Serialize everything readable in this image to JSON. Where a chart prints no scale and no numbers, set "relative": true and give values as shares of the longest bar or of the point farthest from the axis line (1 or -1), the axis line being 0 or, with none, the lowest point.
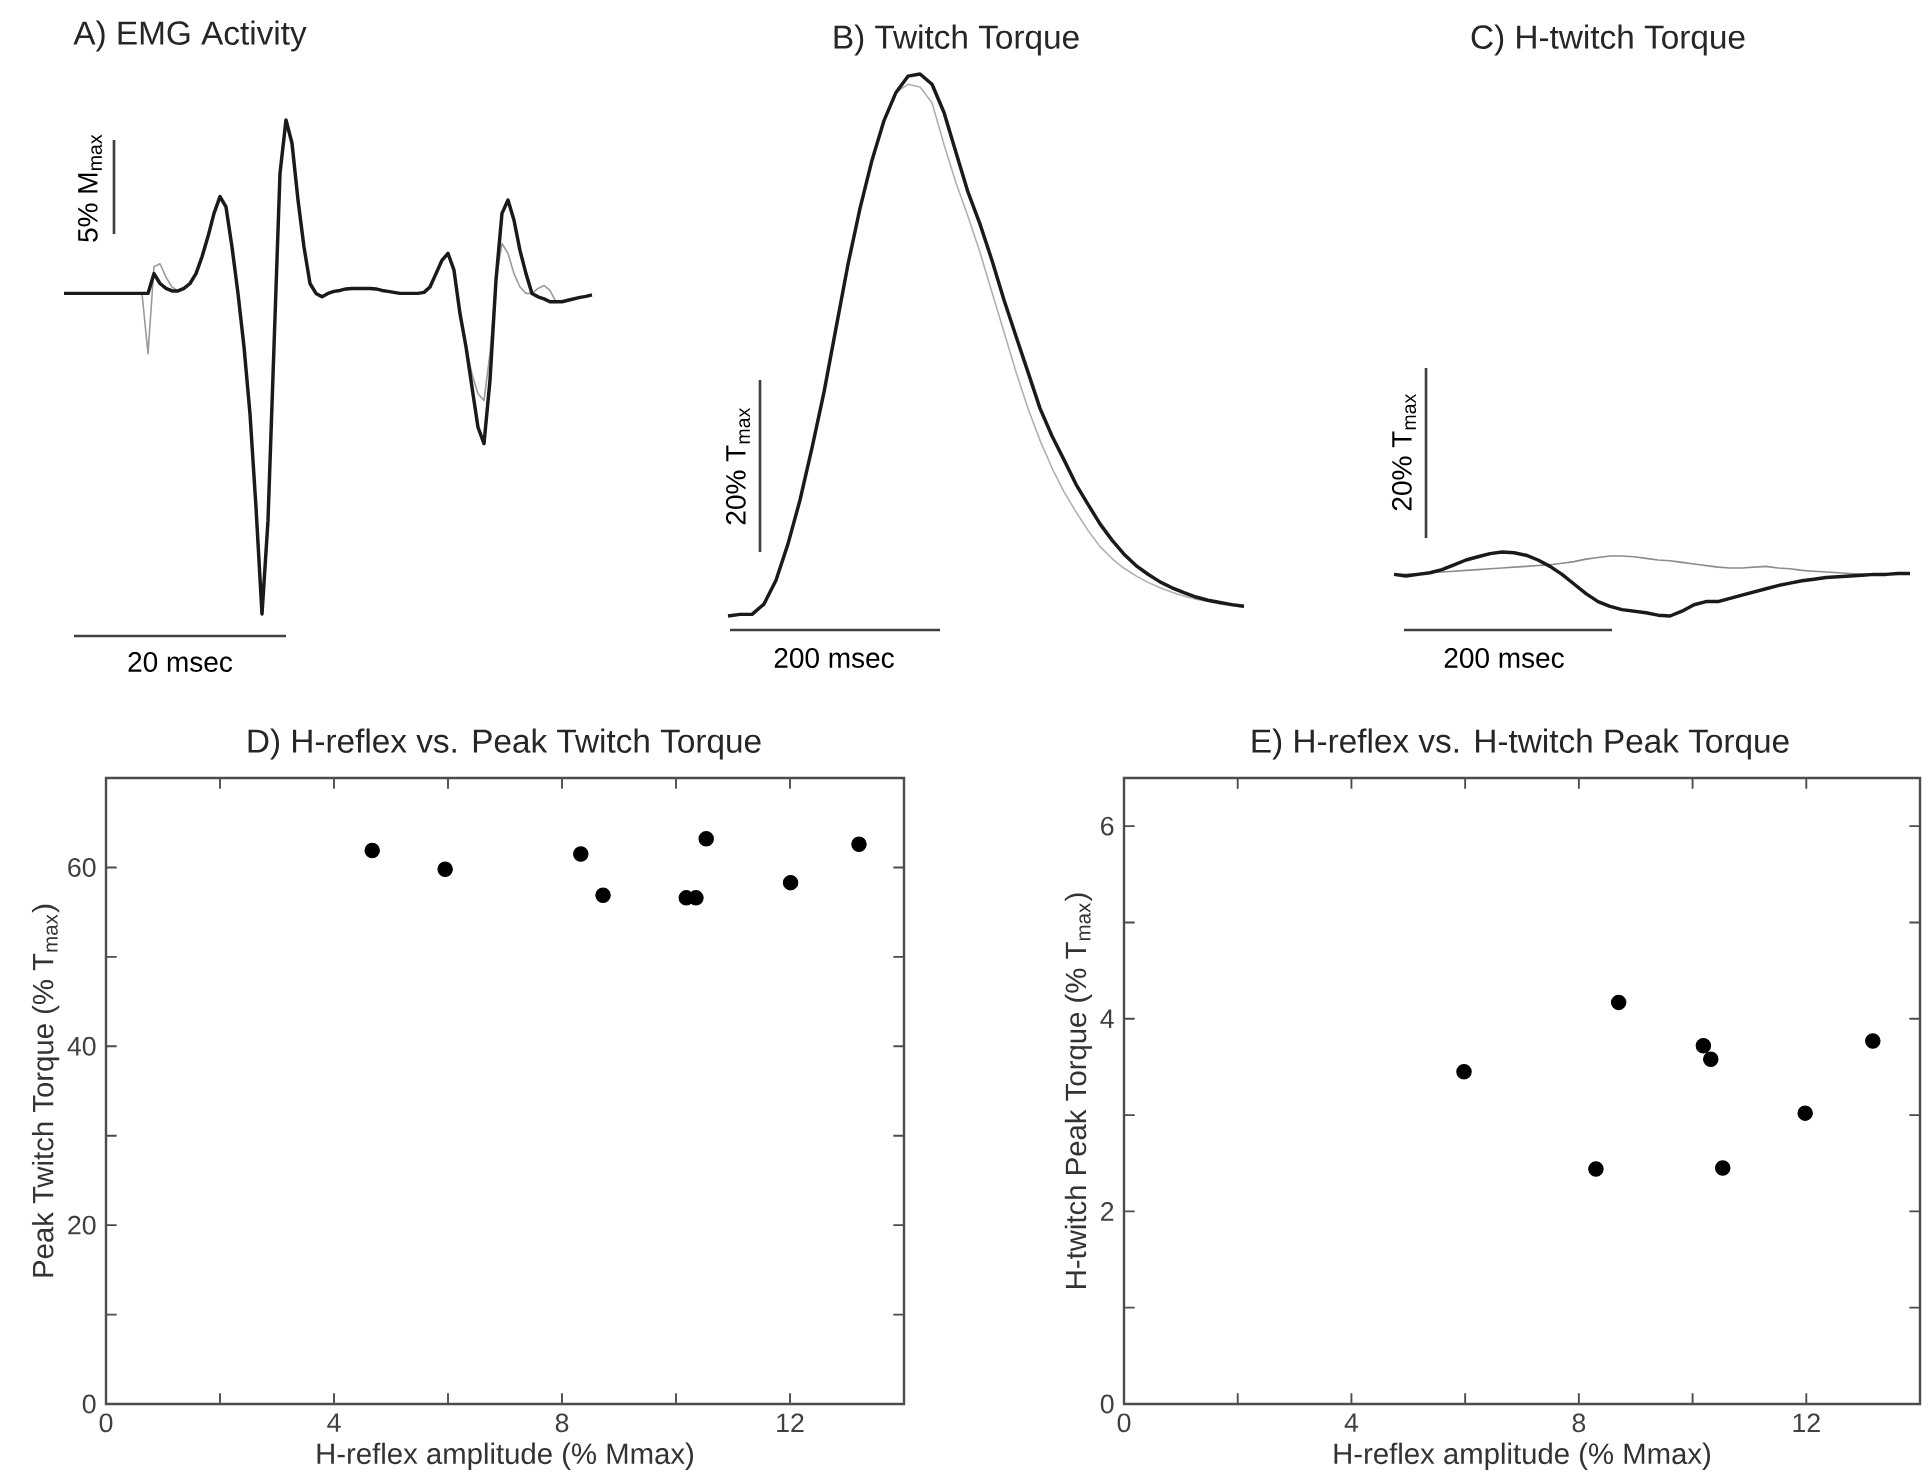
{
  "chart_data": [
    {
      "type": "line",
      "title": "A) EMG Activity",
      "relative": true,
      "annotations": [
        "5% M$_{max}$",
        "20 msec"
      ],
      "categories": [
        null,
        null,
        null,
        null,
        null,
        null,
        null,
        null,
        null,
        null,
        null,
        null,
        null,
        null,
        null,
        null,
        null,
        null,
        null,
        null,
        null,
        null,
        null,
        null,
        null,
        null,
        null,
        null,
        null,
        null,
        null,
        null,
        null,
        null,
        null,
        null,
        null,
        null,
        null,
        null,
        null,
        null,
        null,
        null,
        null,
        null,
        null,
        null,
        null,
        null,
        null,
        null,
        null,
        null,
        null,
        null,
        null,
        null,
        null,
        null,
        null,
        null,
        null,
        null,
        null,
        null,
        null,
        null,
        null,
        null,
        null,
        null,
        null,
        null,
        null,
        null,
        null,
        null,
        null,
        null,
        null,
        null,
        null,
        null,
        null,
        null,
        null,
        null,
        null
      ],
      "series": [
        {
          "color": "#9a9a9a",
          "values": [
            null,
            null,
            null,
            null,
            null,
            null,
            null,
            null,
            null,
            null,
            null,
            null,
            null,
            0.649,
            0.527,
            0.703,
            0.709,
            0.682,
            0.662,
            0.654,
            null,
            null,
            null,
            null,
            null,
            null,
            null,
            null,
            null,
            null,
            null,
            null,
            null,
            null,
            null,
            null,
            null,
            null,
            null,
            null,
            null,
            null,
            null,
            null,
            null,
            null,
            null,
            null,
            null,
            null,
            null,
            null,
            null,
            null,
            null,
            null,
            null,
            null,
            null,
            null,
            null,
            null,
            null,
            null,
            null,
            null,
            null,
            0.541,
            0.486,
            0.446,
            0.432,
            0.527,
            0.676,
            0.75,
            0.73,
            0.689,
            0.662,
            0.649,
            0.649,
            0.659,
            0.665,
            0.655,
            0.632,
            null,
            null,
            null,
            null,
            null,
            null
          ]
        },
        {
          "color": "#1a1a1a",
          "values": [
            0.649,
            0.649,
            0.649,
            0.649,
            0.649,
            0.649,
            0.649,
            0.649,
            0.649,
            0.649,
            0.649,
            0.649,
            0.649,
            0.649,
            0.649,
            0.689,
            0.669,
            0.659,
            0.654,
            0.654,
            0.659,
            0.669,
            0.689,
            0.723,
            0.764,
            0.811,
            0.845,
            0.824,
            0.743,
            0.649,
            0.541,
            0.405,
            0.216,
            0,
            0.189,
            0.541,
            0.892,
            1,
            0.953,
            0.838,
            0.743,
            0.669,
            0.649,
            0.642,
            0.649,
            0.653,
            0.655,
            0.658,
            0.659,
            0.659,
            0.659,
            0.659,
            0.658,
            0.655,
            0.653,
            0.651,
            0.649,
            0.649,
            0.649,
            0.649,
            0.651,
            0.662,
            0.689,
            0.716,
            0.73,
            0.696,
            0.608,
            0.541,
            0.459,
            0.378,
            0.345,
            0.473,
            0.676,
            0.811,
            0.838,
            0.797,
            0.736,
            0.689,
            0.649,
            0.642,
            0.638,
            0.632,
            0.632,
            0.632,
            0.635,
            0.638,
            0.641,
            0.643,
            0.646
          ]
        }
      ]
    },
    {
      "type": "line",
      "title": "B) Twitch Torque",
      "relative": true,
      "annotations": [
        "20% T$_{max}$",
        "200 msec"
      ],
      "categories": [
        null,
        null,
        null,
        null,
        null,
        null,
        null,
        null,
        null,
        null,
        null,
        null,
        null,
        null,
        null,
        null,
        null,
        null,
        null,
        null,
        null,
        null,
        null,
        null,
        null,
        null,
        null,
        null,
        null,
        null,
        null,
        null,
        null,
        null,
        null,
        null,
        null,
        null,
        null,
        null,
        null,
        null,
        null,
        null
      ],
      "series": [
        {
          "color": "#b0b0b0",
          "values": [
            null,
            null,
            null,
            null,
            null,
            null,
            null,
            null,
            null,
            null,
            null,
            null,
            null,
            null,
            0.966,
            0.981,
            0.976,
            0.947,
            0.87,
            0.799,
            0.737,
            0.671,
            0.597,
            0.524,
            0.45,
            0.383,
            0.324,
            0.273,
            0.229,
            0.192,
            0.158,
            0.128,
            0.106,
            0.088,
            0.074,
            0.062,
            0.052,
            0.044,
            0.037,
            0.031,
            0.027,
            0.022,
            0.019,
            0.016
          ]
        },
        {
          "color": "#1a1a1a",
          "values": [
            0,
            0.003,
            0.003,
            0.022,
            0.066,
            0.133,
            0.214,
            0.31,
            0.413,
            0.531,
            0.649,
            0.752,
            0.841,
            0.914,
            0.966,
            0.996,
            1,
            0.981,
            0.929,
            0.855,
            0.782,
            0.723,
            0.656,
            0.583,
            0.516,
            0.45,
            0.383,
            0.332,
            0.288,
            0.243,
            0.206,
            0.17,
            0.14,
            0.114,
            0.093,
            0.077,
            0.063,
            0.052,
            0.043,
            0.035,
            0.029,
            0.025,
            0.021,
            0.018
          ]
        }
      ]
    },
    {
      "type": "line",
      "title": "C) H-twitch Torque",
      "relative": true,
      "annotations": [
        "20% T$_{max}$",
        "200 msec"
      ],
      "categories": [
        null,
        null,
        null,
        null,
        null,
        null,
        null,
        null,
        null,
        null,
        null,
        null,
        null,
        null,
        null,
        null,
        null,
        null,
        null,
        null,
        null,
        null,
        null,
        null,
        null,
        null,
        null,
        null,
        null,
        null,
        null,
        null,
        null,
        null,
        null,
        null,
        null,
        null,
        null,
        null,
        null,
        null,
        null,
        null
      ],
      "series": [
        {
          "color": "#8c8c8c",
          "values": [
            0.65,
            0.65,
            0.663,
            0.675,
            0.688,
            0.7,
            0.713,
            0.725,
            0.738,
            0.75,
            0.763,
            0.775,
            0.788,
            0.8,
            0.825,
            0.85,
            0.888,
            0.913,
            0.938,
            0.938,
            0.925,
            0.9,
            0.875,
            0.863,
            0.838,
            0.813,
            0.788,
            0.763,
            0.75,
            0.75,
            0.763,
            0.775,
            0.75,
            0.738,
            0.713,
            0.7,
            0.688,
            0.675,
            0.663,
            0.65,
            0.65,
            0.65,
            0.663,
            0.663
          ]
        },
        {
          "color": "#1a1a1a",
          "values": [
            0.65,
            0.625,
            0.65,
            0.675,
            0.725,
            0.8,
            0.875,
            0.925,
            0.975,
            1,
            0.988,
            0.95,
            0.875,
            0.775,
            0.65,
            0.5,
            0.35,
            0.225,
            0.15,
            0.1,
            0.075,
            0.05,
            0.013,
            0,
            0.075,
            0.175,
            0.225,
            0.225,
            0.275,
            0.325,
            0.375,
            0.425,
            0.475,
            0.513,
            0.55,
            0.575,
            0.6,
            0.613,
            0.625,
            0.638,
            0.65,
            0.65,
            0.663,
            0.663
          ]
        }
      ]
    },
    {
      "type": "scatter",
      "title": "D) H-reflex vs. Peak Twitch Torque",
      "xlabel": "H-reflex amplitude (% Mmax)",
      "ylabel": "Peak Twitch Torque (% T$_{max}$)",
      "color": "#000000",
      "marker": "circle",
      "x": [
        4.67,
        5.95,
        8.33,
        8.72,
        10.18,
        10.35,
        10.53,
        12.01,
        13.21
      ],
      "values": [
        61.9,
        59.8,
        61.5,
        56.9,
        56.6,
        56.6,
        63.2,
        58.3,
        62.6
      ],
      "xlim": [
        0,
        14
      ],
      "ylim": [
        0,
        70
      ],
      "xticks": [
        0,
        {
          "value": 2,
          "label": null
        },
        4,
        {
          "value": 6,
          "label": null
        },
        8,
        {
          "value": 10,
          "label": null
        },
        12
      ],
      "yticks": [
        0,
        {
          "value": 10,
          "label": null
        },
        20,
        {
          "value": 30,
          "label": null
        },
        40,
        {
          "value": 50,
          "label": null
        },
        60
      ]
    },
    {
      "type": "scatter",
      "title": "E) H-reflex vs. H-twitch Peak Torque",
      "xlabel": "H-reflex amplitude (% Mmax)",
      "ylabel": "H-twitch Peak Torque (% T$_{max}$)",
      "color": "#000000",
      "marker": "circle",
      "x": [
        5.98,
        8.7,
        8.3,
        10.19,
        10.32,
        10.53,
        11.98,
        13.17
      ],
      "values": [
        3.45,
        4.17,
        2.44,
        3.72,
        3.58,
        2.45,
        3.02,
        3.77
      ],
      "xlim": [
        0,
        14
      ],
      "ylim": [
        0,
        6.5
      ],
      "xticks": [
        0,
        {
          "value": 2,
          "label": null
        },
        4,
        {
          "value": 6,
          "label": null
        },
        8,
        {
          "value": 10,
          "label": null
        },
        12
      ],
      "yticks": [
        0,
        {
          "value": 1,
          "label": null
        },
        2,
        {
          "value": 3,
          "label": null
        },
        4,
        {
          "value": 5,
          "label": null
        },
        6
      ]
    }
  ]
}
